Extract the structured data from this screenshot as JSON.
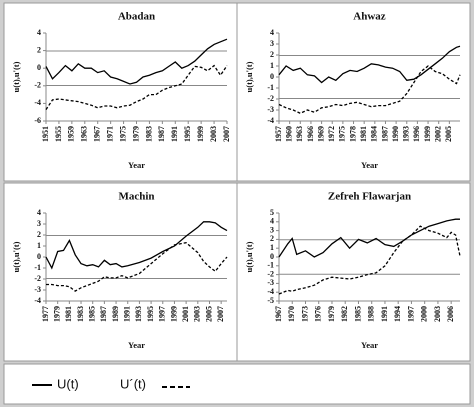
{
  "chart_data": [
    {
      "type": "line",
      "title": "Abadan",
      "x_label": "Year",
      "y_label": "u(t),u'(t)",
      "x": [
        1951,
        1953,
        1955,
        1957,
        1959,
        1961,
        1963,
        1965,
        1967,
        1969,
        1971,
        1973,
        1975,
        1977,
        1979,
        1981,
        1983,
        1985,
        1987,
        1989,
        1991,
        1993,
        1995,
        1997,
        1999,
        2001,
        2003,
        2005,
        2007
      ],
      "xlim": [
        1951,
        2007
      ],
      "xticks": [
        1951,
        1955,
        1959,
        1963,
        1967,
        1971,
        1975,
        1979,
        1983,
        1987,
        1991,
        1995,
        1999,
        2003,
        2007
      ],
      "ylim": [
        -6,
        4
      ],
      "yticks": [
        -6,
        -4,
        -2,
        0,
        2,
        4
      ],
      "reference_lines": [
        1.96,
        -1.96
      ],
      "series": [
        {
          "name": "U(t)",
          "color": "#000000",
          "style": "solid",
          "values": [
            0.2,
            -1.2,
            -0.5,
            0.3,
            -0.3,
            0.5,
            0,
            0,
            -0.5,
            -0.3,
            -1.0,
            -1.2,
            -1.5,
            -1.8,
            -1.6,
            -1.0,
            -0.8,
            -0.5,
            -0.3,
            0.2,
            0.7,
            0,
            0.3,
            0.8,
            1.5,
            2.2,
            2.7,
            3.0,
            3.3
          ]
        },
        {
          "name": "U´(t)",
          "color": "#000000",
          "style": "dashed",
          "values": [
            -4.7,
            -3.6,
            -3.5,
            -3.6,
            -3.7,
            -3.8,
            -4.0,
            -4.2,
            -4.5,
            -4.3,
            -4.3,
            -4.5,
            -4.3,
            -4.2,
            -3.8,
            -3.5,
            -3.0,
            -3.0,
            -2.5,
            -2.2,
            -2.0,
            -1.8,
            -0.8,
            0.2,
            0.1,
            -0.3,
            0.3,
            -0.8,
            0.3
          ]
        }
      ]
    },
    {
      "type": "line",
      "title": "Ahwaz",
      "x_label": "Year",
      "y_label": "u(t),u'(t)",
      "x": [
        1957,
        1959,
        1961,
        1963,
        1965,
        1967,
        1969,
        1971,
        1973,
        1975,
        1977,
        1979,
        1981,
        1983,
        1985,
        1987,
        1989,
        1991,
        1993,
        1995,
        1997,
        1999,
        2001,
        2003,
        2005,
        2007,
        2008
      ],
      "xlim": [
        1957,
        2008
      ],
      "xticks": [
        1957,
        1960,
        1963,
        1966,
        1969,
        1972,
        1975,
        1978,
        1981,
        1984,
        1987,
        1990,
        1993,
        1996,
        1999,
        2002,
        2005
      ],
      "ylim": [
        -4,
        4
      ],
      "yticks": [
        -4,
        -3,
        -2,
        -1,
        0,
        1,
        2,
        3,
        4
      ],
      "reference_lines": [
        1.96,
        -1.96
      ],
      "series": [
        {
          "name": "U(t)",
          "color": "#000000",
          "style": "solid",
          "values": [
            0.2,
            1.0,
            0.6,
            0.8,
            0.2,
            0.1,
            -0.5,
            0,
            -0.3,
            0.3,
            0.6,
            0.5,
            0.8,
            1.2,
            1.1,
            0.9,
            0.8,
            0.5,
            -0.3,
            -0.2,
            0.2,
            0.7,
            1.2,
            1.7,
            2.3,
            2.7,
            2.8
          ]
        },
        {
          "name": "U´(t)",
          "color": "#000000",
          "style": "dashed",
          "values": [
            -2.5,
            -2.8,
            -3.0,
            -3.3,
            -3.0,
            -3.2,
            -2.8,
            -2.7,
            -2.5,
            -2.6,
            -2.4,
            -2.3,
            -2.5,
            -2.7,
            -2.6,
            -2.6,
            -2.4,
            -2.2,
            -1.5,
            -0.5,
            0.5,
            1.0,
            0.5,
            0.3,
            -0.2,
            -0.6,
            0.2
          ]
        }
      ]
    },
    {
      "type": "line",
      "title": "Machin",
      "x_label": "Year",
      "y_label": "u(t),u'(t)",
      "x": [
        1977,
        1978,
        1979,
        1980,
        1981,
        1982,
        1983,
        1984,
        1985,
        1986,
        1987,
        1988,
        1989,
        1990,
        1991,
        1993,
        1995,
        1997,
        1999,
        2001,
        2003,
        2004,
        2005,
        2006,
        2007,
        2008
      ],
      "xlim": [
        1977,
        2008
      ],
      "xticks": [
        1977,
        1979,
        1981,
        1983,
        1985,
        1987,
        1989,
        1991,
        1993,
        1995,
        1997,
        1999,
        2001,
        2003,
        2005,
        2007
      ],
      "ylim": [
        -4,
        4
      ],
      "yticks": [
        -4,
        -3,
        -2,
        -1,
        0,
        1,
        2,
        3,
        4
      ],
      "reference_lines": [
        1.96,
        -1.96
      ],
      "series": [
        {
          "name": "U(t)",
          "color": "#000000",
          "style": "solid",
          "values": [
            0,
            -1.0,
            0.5,
            0.6,
            1.5,
            0.2,
            -0.6,
            -0.8,
            -0.7,
            -0.9,
            -0.3,
            -0.7,
            -0.6,
            -0.9,
            -0.8,
            -0.5,
            -0.1,
            0.5,
            1.0,
            1.9,
            2.7,
            3.2,
            3.2,
            3.1,
            2.7,
            2.4
          ]
        },
        {
          "name": "U´(t)",
          "color": "#000000",
          "style": "dashed",
          "values": [
            -2.5,
            -2.5,
            -2.6,
            -2.6,
            -2.7,
            -3.1,
            -2.8,
            -2.6,
            -2.4,
            -2.2,
            -1.8,
            -1.9,
            -1.9,
            -1.7,
            -1.9,
            -1.5,
            -0.6,
            0.3,
            1.1,
            1.3,
            0.4,
            -0.4,
            -0.9,
            -1.3,
            -0.6,
            0
          ]
        }
      ]
    },
    {
      "type": "line",
      "title": "Zefreh  Flawarjan",
      "x_label": "Year",
      "y_label": "u(t),u'(t)",
      "x": [
        1967,
        1969,
        1970,
        1971,
        1973,
        1975,
        1977,
        1979,
        1981,
        1983,
        1985,
        1987,
        1989,
        1991,
        1993,
        1995,
        1997,
        1999,
        2001,
        2003,
        2005,
        2006,
        2007,
        2008
      ],
      "xlim": [
        1967,
        2008
      ],
      "xticks": [
        1967,
        1970,
        1973,
        1976,
        1979,
        1982,
        1985,
        1988,
        1991,
        1994,
        1997,
        2000,
        2003,
        2006
      ],
      "ylim": [
        -5,
        5
      ],
      "yticks": [
        -5,
        -4,
        -3,
        -2,
        -1,
        0,
        1,
        2,
        3,
        4,
        5
      ],
      "reference_lines": [
        1.96,
        -1.96
      ],
      "series": [
        {
          "name": "U(t)",
          "color": "#000000",
          "style": "solid",
          "values": [
            0,
            1.5,
            2.1,
            0.3,
            0.7,
            0,
            0.5,
            1.5,
            2.2,
            1.0,
            2.0,
            1.6,
            2.1,
            1.4,
            1.2,
            1.8,
            2.5,
            3.0,
            3.5,
            3.8,
            4.1,
            4.2,
            4.3,
            4.3
          ]
        },
        {
          "name": "U´(t)",
          "color": "#000000",
          "style": "dashed",
          "values": [
            -4.2,
            -3.8,
            -3.9,
            -3.7,
            -3.5,
            -3.2,
            -2.6,
            -2.3,
            -2.4,
            -2.5,
            -2.3,
            -2.0,
            -1.8,
            -1.0,
            0.5,
            1.8,
            2.5,
            3.5,
            3.0,
            2.7,
            2.2,
            2.8,
            2.5,
            0.1
          ]
        }
      ]
    }
  ]
}
